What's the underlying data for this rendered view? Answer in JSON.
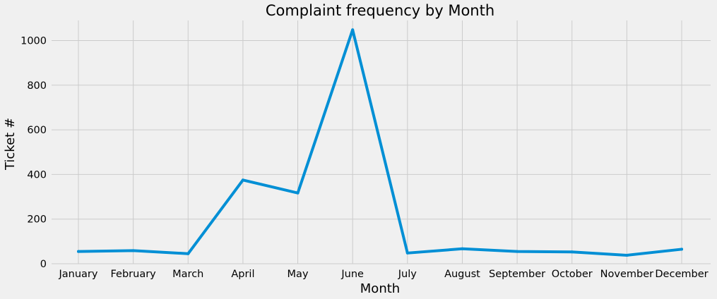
{
  "chart_data": {
    "type": "line",
    "title": "Complaint frequency by Month",
    "xlabel": "Month",
    "ylabel": "Ticket #",
    "categories": [
      "January",
      "February",
      "March",
      "April",
      "May",
      "June",
      "July",
      "August",
      "September",
      "October",
      "November",
      "December"
    ],
    "series": [
      {
        "values": [
          55,
          59,
          45,
          375,
          317,
          1048,
          48,
          67,
          55,
          53,
          38,
          65
        ]
      }
    ],
    "ylim": [
      0,
      1090
    ],
    "yticks": [
      0,
      200,
      400,
      600,
      800,
      1000
    ],
    "grid": true,
    "colors": {
      "series": "#008fd5",
      "background": "#f0f0f0",
      "grid": "#cbcbcb"
    }
  }
}
